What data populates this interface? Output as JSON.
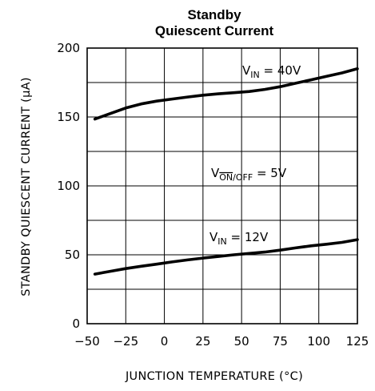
{
  "chart_data": {
    "type": "line",
    "title": [
      "Standby",
      "Quiescent Current"
    ],
    "xlabel": "JUNCTION TEMPERATURE (°C)",
    "ylabel": "STANDBY QUIESCENT CURRENT (μA)",
    "xlim": [
      -50,
      125
    ],
    "ylim": [
      0,
      200
    ],
    "x_ticks": [
      -50,
      -25,
      0,
      25,
      50,
      75,
      100,
      125
    ],
    "y_ticks": [
      0,
      50,
      100,
      150,
      200
    ],
    "grid": true,
    "annotations": {
      "vin40": {
        "main": "V",
        "sub": "IN",
        "rest": " = 40V"
      },
      "von": {
        "main": "V",
        "sub": "ON/OFF",
        "rest": " = 5V"
      },
      "vin12": {
        "main": "V",
        "sub": "IN",
        "rest": " = 12V"
      }
    },
    "series": [
      {
        "label": "VIN = 40V",
        "x": [
          -45,
          -35,
          -25,
          -15,
          -5,
          5,
          15,
          25,
          35,
          45,
          55,
          65,
          75,
          85,
          95,
          105,
          115,
          125
        ],
        "y": [
          148.5,
          152.5,
          156.5,
          159.5,
          161.5,
          163.0,
          164.5,
          165.8,
          166.8,
          167.6,
          168.5,
          170.0,
          172.0,
          174.5,
          177.0,
          179.5,
          182.0,
          185.0
        ]
      },
      {
        "label": "VIN = 12V",
        "x": [
          -45,
          -35,
          -25,
          -15,
          -5,
          5,
          15,
          25,
          35,
          45,
          55,
          65,
          75,
          85,
          95,
          105,
          115,
          125
        ],
        "y": [
          36.0,
          38.0,
          40.0,
          41.7,
          43.2,
          44.8,
          46.3,
          47.6,
          48.8,
          50.0,
          51.0,
          52.0,
          53.4,
          55.0,
          56.5,
          57.7,
          59.0,
          61.0
        ]
      }
    ]
  }
}
